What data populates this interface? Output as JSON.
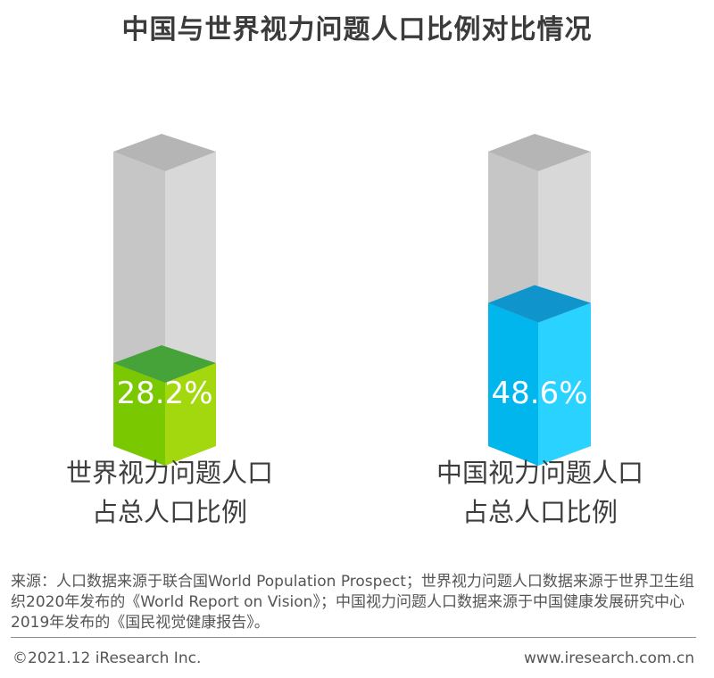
{
  "title": "中国与世界视力问题人口比例对比情况",
  "chart_data": {
    "type": "bar",
    "title": "中国与世界视力问题人口比例对比情况",
    "unit": "%",
    "ylim": [
      0,
      100
    ],
    "categories": [
      "世界视力问题人口\n占总人口比例",
      "中国视力问题人口\n占总人口比例"
    ],
    "series": [
      {
        "values": [
          28.2,
          48.6
        ]
      }
    ],
    "value_labels": [
      "28.2%",
      "48.6%"
    ],
    "colors": {
      "bar_0": {
        "front": "#7ac900",
        "side": "#a4d80e",
        "top": "#45a33a"
      },
      "bar_1": {
        "front": "#00b6ec",
        "side": "#2ad2ff",
        "top": "#0f95cc"
      },
      "track": {
        "front": "#c6c6c6",
        "side": "#d8d8d8",
        "top": "#b5b5b5"
      }
    }
  },
  "labels": {
    "left": [
      "世界视力问题人口",
      "占总人口比例"
    ],
    "right": [
      "中国视力问题人口",
      "占总人口比例"
    ]
  },
  "source": "来源：人口数据来源于联合国World Population Prospect；世界视力问题人口数据来源于世界卫生组织2020年发布的《World Report on Vision》；中国视力问题人口数据来源于中国健康发展研究中心2019年发布的《国民视觉健康报告》。",
  "footer": {
    "copyright": "©2021.12 iResearch Inc.",
    "website": "www.iresearch.com.cn"
  }
}
